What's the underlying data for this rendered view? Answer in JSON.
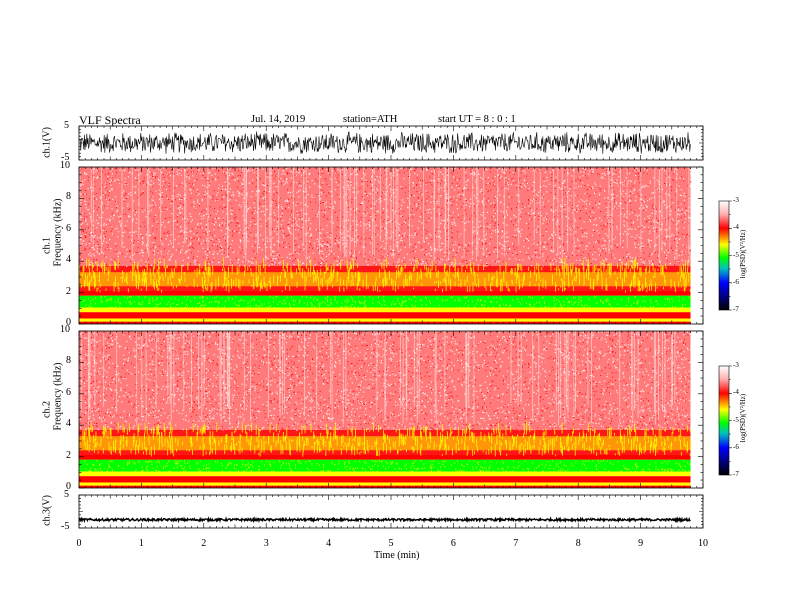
{
  "header": {
    "title": "VLF  Spectra",
    "date": "Jul.  14,  2019",
    "station": "station=ATH",
    "start_ut": "start  UT  =    8  :  0  :  1"
  },
  "chart_data": [
    {
      "type": "line",
      "name": "ch1-waveform",
      "ylabel": "ch.1(V)",
      "ylim": [
        -5,
        5
      ],
      "yticks": [
        "5",
        "-5"
      ],
      "xlim": [
        0,
        10
      ],
      "data_end_min": 9.8,
      "amplitude_v": [
        -3.5,
        3.5
      ]
    },
    {
      "type": "heatmap",
      "name": "ch1-spectrogram",
      "ylabel": [
        "ch.1",
        "Frequency  (kHz)"
      ],
      "ylim": [
        0,
        10
      ],
      "yticks": [
        "0",
        "2",
        "4",
        "6",
        "8",
        "10"
      ],
      "xlim": [
        0,
        10
      ],
      "colorbar": {
        "label": "log(PSD)(V²/Hz)",
        "range": [
          -7,
          -3
        ],
        "ticks": [
          "-3",
          "-4",
          "-5",
          "-6",
          "-7"
        ]
      }
    },
    {
      "type": "heatmap",
      "name": "ch2-spectrogram",
      "ylabel": [
        "ch.2",
        "Frequency  (kHz)"
      ],
      "ylim": [
        0,
        10
      ],
      "yticks": [
        "0",
        "2",
        "4",
        "6",
        "8",
        "10"
      ],
      "xlim": [
        0,
        10
      ],
      "colorbar": {
        "label": "log(PSD)(V²/Hz)",
        "range": [
          -7,
          -3
        ],
        "ticks": [
          "-3",
          "-4",
          "-5",
          "-6",
          "-7"
        ]
      }
    },
    {
      "type": "line",
      "name": "ch3-waveform",
      "ylabel": "ch.3(V)",
      "ylim": [
        -5,
        5
      ],
      "yticks": [
        "5",
        "-5"
      ],
      "xlim": [
        0,
        10
      ],
      "data_end_min": 9.8,
      "level_v": -2.5
    }
  ],
  "xaxis": {
    "label": "Time  (min)",
    "ticks": [
      "0",
      "1",
      "2",
      "3",
      "4",
      "5",
      "6",
      "7",
      "8",
      "9",
      "10"
    ]
  },
  "colors": {
    "strong": "#ff0000",
    "mid": "#ffff00",
    "weak": "#00ff00",
    "background_light": "#ffe0e0"
  }
}
